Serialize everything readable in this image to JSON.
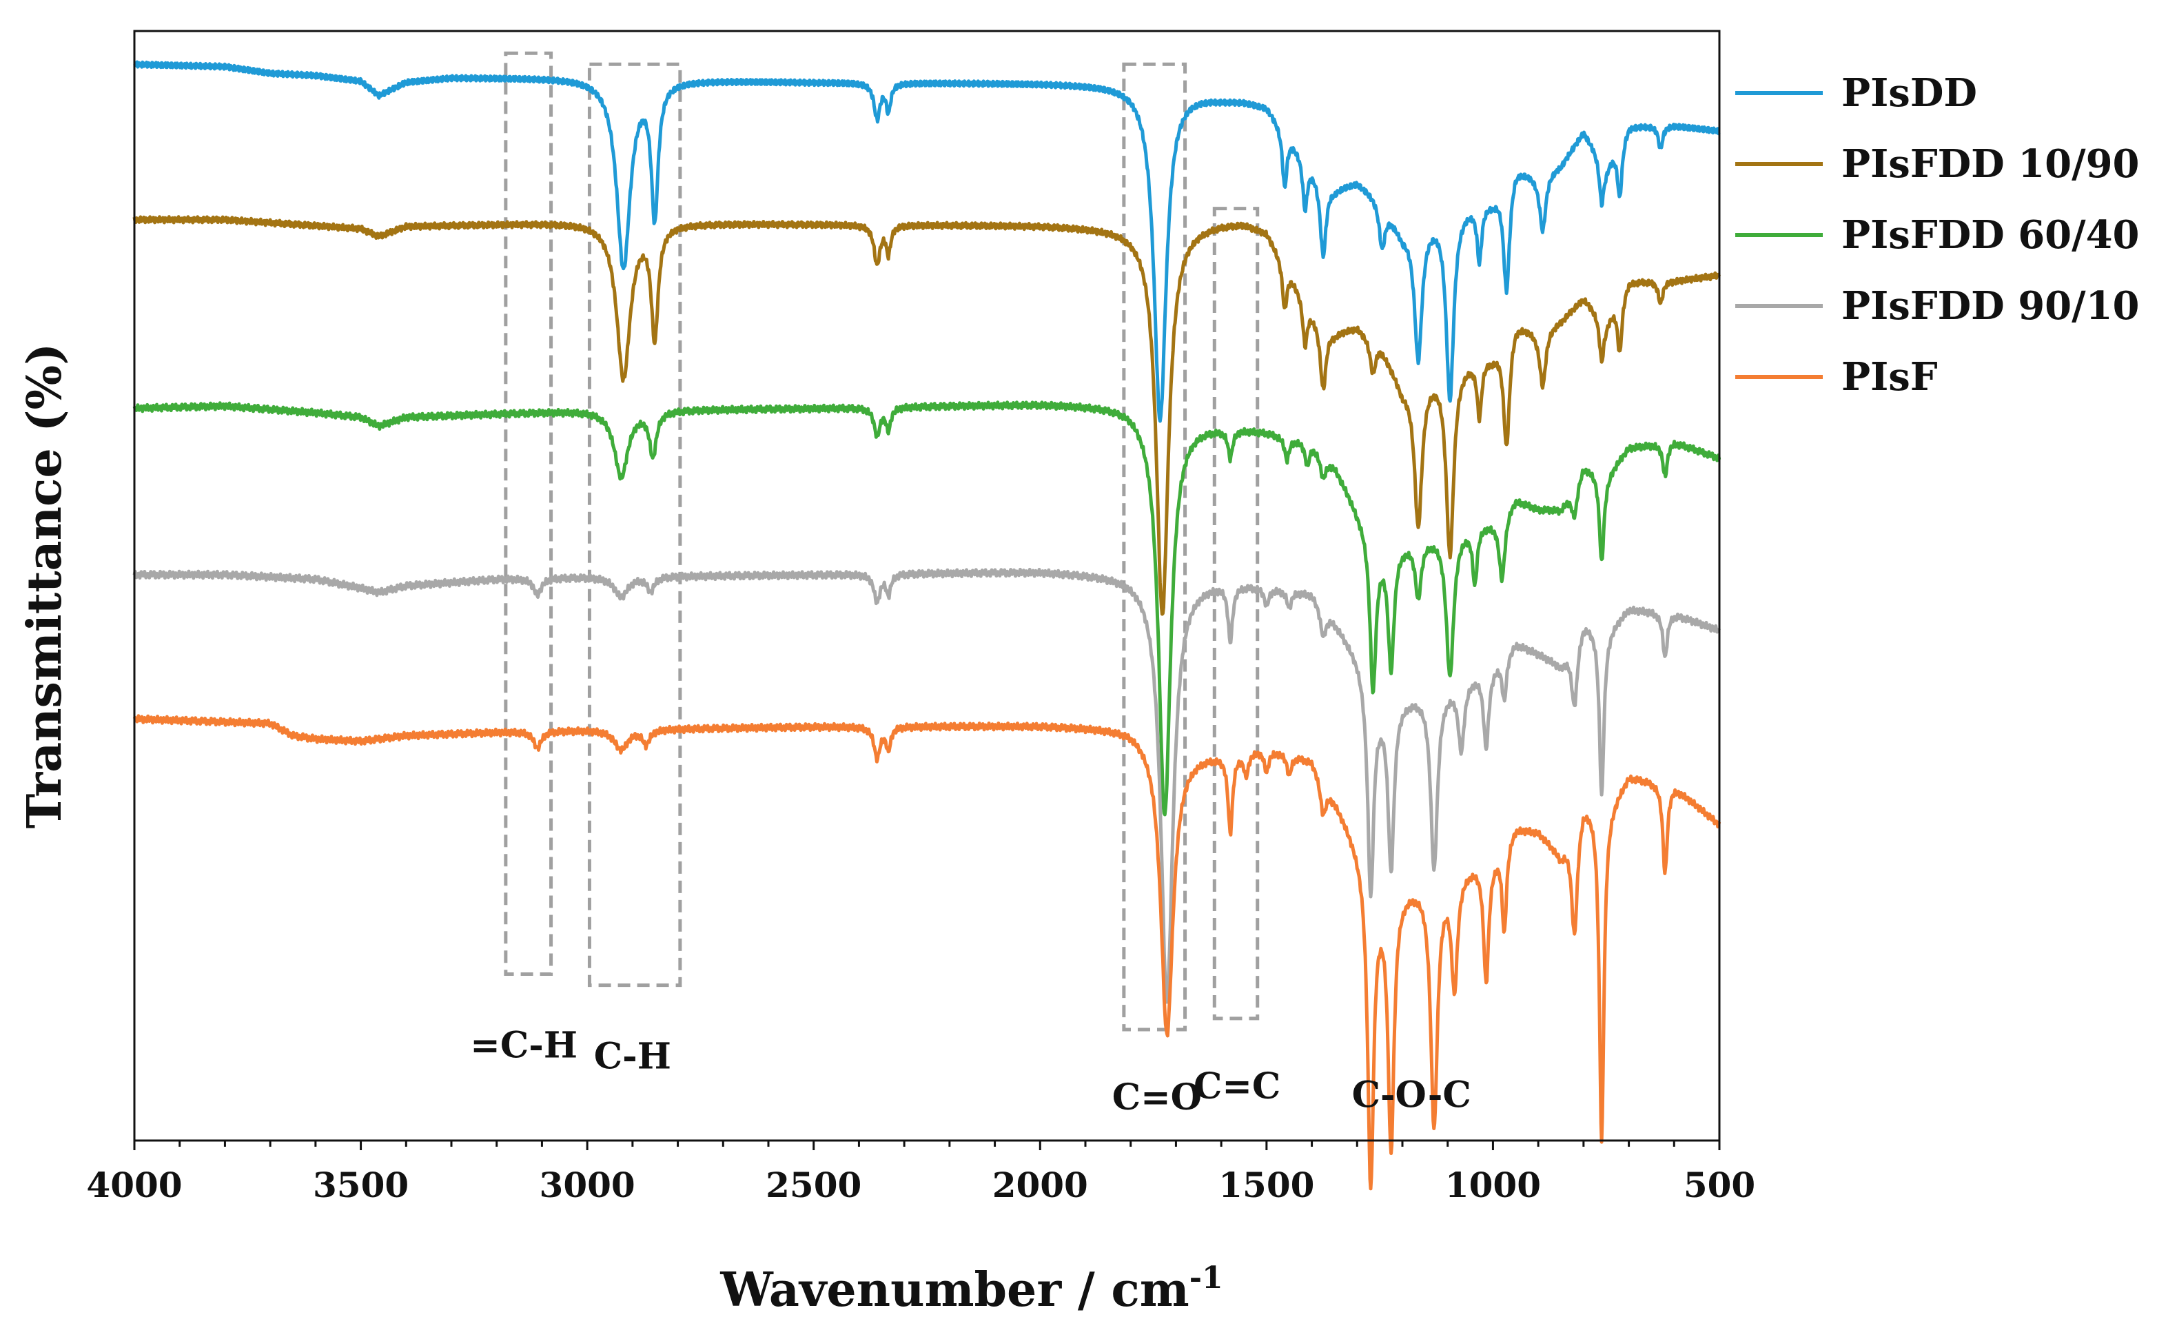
{
  "chart_data": {
    "type": "line",
    "title": "",
    "xlabel": "Wavenumber / cm",
    "xlabel_superscript": "-1",
    "ylabel": "Transmittance (%)",
    "xlim": [
      4000,
      500
    ],
    "x_reversed": true,
    "xticks": [
      4000,
      3500,
      3000,
      2500,
      2000,
      1500,
      1000,
      500
    ],
    "xtick_labels": [
      "4000",
      "3500",
      "3000",
      "2500",
      "2000",
      "1500",
      "1000",
      "500"
    ],
    "yticks_shown": false,
    "ylim": [
      0,
      100
    ],
    "grid": false,
    "legend_position": "right",
    "series": [
      {
        "name": "PIsDD",
        "color": "#1f9ad6",
        "baseline": 97,
        "anchors": [
          [
            4000,
            97
          ],
          [
            3800,
            96.8
          ],
          [
            3700,
            96.2
          ],
          [
            3600,
            96
          ],
          [
            3500,
            95.5
          ],
          [
            3460,
            94.2
          ],
          [
            3400,
            95.4
          ],
          [
            3300,
            95.8
          ],
          [
            3000,
            95.8
          ],
          [
            2500,
            95.4
          ],
          [
            2000,
            95.3
          ],
          [
            1800,
            95.2
          ],
          [
            1700,
            94.8
          ],
          [
            1600,
            94
          ],
          [
            1550,
            93.8
          ],
          [
            1500,
            93.3
          ],
          [
            1400,
            88
          ],
          [
            1350,
            86
          ],
          [
            1300,
            86.5
          ],
          [
            1250,
            85
          ],
          [
            1200,
            82
          ],
          [
            1100,
            84
          ],
          [
            1000,
            85
          ],
          [
            950,
            88
          ],
          [
            900,
            87
          ],
          [
            850,
            88
          ],
          [
            800,
            91
          ],
          [
            750,
            88
          ],
          [
            700,
            91.5
          ],
          [
            600,
            91.5
          ],
          [
            500,
            91
          ]
        ],
        "peaks": [
          [
            2920,
            17,
            18
          ],
          [
            2851,
            12,
            9
          ],
          [
            2360,
            3.2,
            8
          ],
          [
            2335,
            2.5,
            6
          ],
          [
            1735,
            30,
            16
          ],
          [
            1460,
            5,
            6
          ],
          [
            1415,
            4.5,
            6
          ],
          [
            1375,
            7,
            8
          ],
          [
            1245,
            4,
            8
          ],
          [
            1165,
            12,
            10
          ],
          [
            1095,
            17,
            10
          ],
          [
            1030,
            5,
            6
          ],
          [
            970,
            10,
            8
          ],
          [
            890,
            5,
            8
          ],
          [
            760,
            4,
            6
          ],
          [
            720,
            5,
            6
          ],
          [
            630,
            2,
            6
          ]
        ]
      },
      {
        "name": "PIsFDD 10/90",
        "color": "#a37413",
        "baseline": 83,
        "anchors": [
          [
            4000,
            83
          ],
          [
            3800,
            83
          ],
          [
            3500,
            82.2
          ],
          [
            3460,
            81.5
          ],
          [
            3400,
            82.4
          ],
          [
            3000,
            82.8
          ],
          [
            2500,
            82.6
          ],
          [
            2000,
            82.5
          ],
          [
            1800,
            82.3
          ],
          [
            1700,
            82.5
          ],
          [
            1600,
            82.8
          ],
          [
            1550,
            82.8
          ],
          [
            1500,
            82
          ],
          [
            1400,
            75
          ],
          [
            1350,
            73
          ],
          [
            1300,
            73.5
          ],
          [
            1250,
            72
          ],
          [
            1200,
            68
          ],
          [
            1100,
            70
          ],
          [
            1000,
            71
          ],
          [
            950,
            74
          ],
          [
            900,
            73
          ],
          [
            850,
            74
          ],
          [
            800,
            76
          ],
          [
            750,
            74
          ],
          [
            700,
            77.5
          ],
          [
            600,
            77.5
          ],
          [
            500,
            78
          ]
        ],
        "peaks": [
          [
            2920,
            14,
            18
          ],
          [
            2851,
            10,
            9
          ],
          [
            2360,
            3.5,
            8
          ],
          [
            2335,
            2.5,
            6
          ],
          [
            1730,
            35,
            16
          ],
          [
            1460,
            4,
            6
          ],
          [
            1415,
            4,
            6
          ],
          [
            1375,
            6,
            8
          ],
          [
            1265,
            3,
            8
          ],
          [
            1165,
            13,
            10
          ],
          [
            1095,
            17,
            10
          ],
          [
            1030,
            5,
            6
          ],
          [
            970,
            10,
            8
          ],
          [
            890,
            5,
            8
          ],
          [
            760,
            4,
            6
          ],
          [
            720,
            5,
            6
          ],
          [
            630,
            2,
            6
          ]
        ]
      },
      {
        "name": "PIsFDD 60/40",
        "color": "#3fac3a",
        "baseline": 66,
        "anchors": [
          [
            4000,
            66
          ],
          [
            3800,
            66.2
          ],
          [
            3600,
            65.6
          ],
          [
            3500,
            65.2
          ],
          [
            3460,
            64.4
          ],
          [
            3400,
            65.2
          ],
          [
            3000,
            65.8
          ],
          [
            2500,
            66
          ],
          [
            2000,
            66.4
          ],
          [
            1800,
            66.3
          ],
          [
            1700,
            65
          ],
          [
            1600,
            64.5
          ],
          [
            1550,
            64.3
          ],
          [
            1500,
            64
          ],
          [
            1400,
            63
          ],
          [
            1350,
            61
          ],
          [
            1300,
            57
          ],
          [
            1250,
            54
          ],
          [
            1200,
            54
          ],
          [
            1100,
            55
          ],
          [
            1000,
            56
          ],
          [
            950,
            58
          ],
          [
            900,
            57
          ],
          [
            850,
            57
          ],
          [
            800,
            61
          ],
          [
            750,
            60
          ],
          [
            700,
            62.5
          ],
          [
            600,
            63
          ],
          [
            500,
            61.5
          ]
        ],
        "peaks": [
          [
            2925,
            6,
            18
          ],
          [
            2855,
            4,
            9
          ],
          [
            2360,
            2.5,
            8
          ],
          [
            2335,
            2,
            6
          ],
          [
            1725,
            36,
            16
          ],
          [
            1580,
            2.5,
            6
          ],
          [
            1455,
            2,
            6
          ],
          [
            1410,
            2,
            6
          ],
          [
            1375,
            2,
            8
          ],
          [
            1265,
            14,
            8
          ],
          [
            1225,
            11,
            8
          ],
          [
            1165,
            5,
            8
          ],
          [
            1095,
            13,
            10
          ],
          [
            1040,
            5,
            6
          ],
          [
            980,
            6,
            8
          ],
          [
            820,
            3,
            8
          ],
          [
            760,
            8,
            6
          ],
          [
            620,
            3,
            6
          ]
        ]
      },
      {
        "name": "PIsFDD 90/10",
        "color": "#a8a8a8",
        "baseline": 51,
        "anchors": [
          [
            4000,
            51
          ],
          [
            3800,
            51
          ],
          [
            3600,
            50.6
          ],
          [
            3500,
            49.8
          ],
          [
            3460,
            49.4
          ],
          [
            3400,
            50
          ],
          [
            3200,
            50.6
          ],
          [
            3000,
            50.8
          ],
          [
            2500,
            51
          ],
          [
            2000,
            51.3
          ],
          [
            1800,
            51
          ],
          [
            1700,
            50.5
          ],
          [
            1600,
            50.5
          ],
          [
            1550,
            50.3
          ],
          [
            1500,
            50
          ],
          [
            1400,
            49.5
          ],
          [
            1350,
            47
          ],
          [
            1300,
            44
          ],
          [
            1250,
            40
          ],
          [
            1200,
            40
          ],
          [
            1100,
            41
          ],
          [
            1000,
            43
          ],
          [
            950,
            45
          ],
          [
            900,
            44
          ],
          [
            850,
            43
          ],
          [
            800,
            47
          ],
          [
            750,
            46
          ],
          [
            700,
            48
          ],
          [
            600,
            47.5
          ],
          [
            500,
            46
          ]
        ],
        "peaks": [
          [
            3110,
            1.5,
            10
          ],
          [
            2925,
            1.8,
            18
          ],
          [
            2860,
            1.3,
            9
          ],
          [
            2360,
            2.5,
            8
          ],
          [
            2335,
            1.8,
            6
          ],
          [
            1720,
            38,
            16
          ],
          [
            1580,
            5,
            6
          ],
          [
            1500,
            1.5,
            6
          ],
          [
            1450,
            1.5,
            6
          ],
          [
            1375,
            2.5,
            8
          ],
          [
            1270,
            19,
            8
          ],
          [
            1225,
            15,
            8
          ],
          [
            1130,
            16,
            9
          ],
          [
            1070,
            6,
            8
          ],
          [
            1015,
            7,
            7
          ],
          [
            975,
            4,
            6
          ],
          [
            820,
            6,
            8
          ],
          [
            760,
            15,
            6
          ],
          [
            620,
            4,
            6
          ]
        ]
      },
      {
        "name": "PIsF",
        "color": "#f47d32",
        "baseline": 38,
        "anchors": [
          [
            4000,
            38
          ],
          [
            3700,
            37.6
          ],
          [
            3650,
            36.5
          ],
          [
            3600,
            36.2
          ],
          [
            3500,
            36
          ],
          [
            3400,
            36.5
          ],
          [
            3200,
            36.8
          ],
          [
            3000,
            37
          ],
          [
            2500,
            37.3
          ],
          [
            2000,
            37.4
          ],
          [
            1800,
            37.2
          ],
          [
            1750,
            36.5
          ],
          [
            1700,
            35
          ],
          [
            1650,
            35
          ],
          [
            1600,
            35
          ],
          [
            1500,
            35.5
          ],
          [
            1400,
            34.5
          ],
          [
            1350,
            31
          ],
          [
            1300,
            27
          ],
          [
            1250,
            23
          ],
          [
            1200,
            23
          ],
          [
            1100,
            24
          ],
          [
            1000,
            26
          ],
          [
            950,
            28.5
          ],
          [
            900,
            28
          ],
          [
            850,
            26
          ],
          [
            800,
            31
          ],
          [
            750,
            30
          ],
          [
            700,
            33
          ],
          [
            600,
            32
          ],
          [
            500,
            28.5
          ]
        ],
        "peaks": [
          [
            3110,
            1.5,
            10
          ],
          [
            2925,
            1.8,
            18
          ],
          [
            2870,
            1.3,
            9
          ],
          [
            2360,
            2.8,
            8
          ],
          [
            2335,
            2,
            6
          ],
          [
            1720,
            26,
            16
          ],
          [
            1580,
            7,
            6
          ],
          [
            1545,
            2,
            6
          ],
          [
            1500,
            2,
            6
          ],
          [
            1450,
            1.8,
            6
          ],
          [
            1375,
            3,
            8
          ],
          [
            1270,
            28,
            8
          ],
          [
            1225,
            23,
            8
          ],
          [
            1130,
            22,
            9
          ],
          [
            1085,
            10,
            8
          ],
          [
            1015,
            11,
            7
          ],
          [
            975,
            8,
            6
          ],
          [
            820,
            10,
            8
          ],
          [
            760,
            30,
            6
          ],
          [
            620,
            8,
            6
          ]
        ]
      }
    ],
    "band_boxes": [
      {
        "label": "=C-H",
        "x_range": [
          3180,
          3080
        ],
        "y_range": [
          15,
          98
        ]
      },
      {
        "label": "C-H",
        "x_range": [
          2995,
          2795
        ],
        "y_range": [
          14,
          97
        ]
      },
      {
        "label": "C=O",
        "x_range": [
          1815,
          1680
        ],
        "y_range": [
          10,
          97
        ]
      },
      {
        "label": "C=C",
        "x_range": [
          1615,
          1520
        ],
        "y_range": [
          11,
          84
        ]
      }
    ],
    "annotations": [
      {
        "text": "=C-H",
        "x": 3140,
        "y": 7.5
      },
      {
        "text": "C-H",
        "x": 2900,
        "y": 6.5
      },
      {
        "text": "C=O",
        "x": 1742,
        "y": 2.8
      },
      {
        "text": "C=C",
        "x": 1565,
        "y": 3.8
      },
      {
        "text": "C-O-C",
        "x": 1180,
        "y": 3.0
      }
    ]
  }
}
